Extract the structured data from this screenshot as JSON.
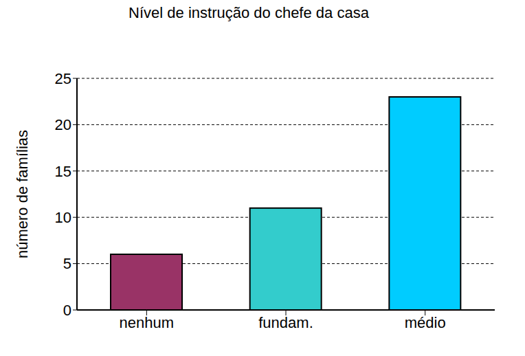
{
  "chart_data": {
    "type": "bar",
    "title": "Nível de instrução do chefe da casa",
    "y_label": "número de famílias",
    "categories": [
      "nenhum",
      "fundam.",
      "médio"
    ],
    "values": [
      6,
      11,
      23
    ],
    "colors": [
      "#993366",
      "#33cccc",
      "#00ccff"
    ],
    "ylim": [
      0,
      25
    ],
    "yticks": [
      0,
      5,
      10,
      15,
      20,
      25
    ],
    "grid": true
  }
}
